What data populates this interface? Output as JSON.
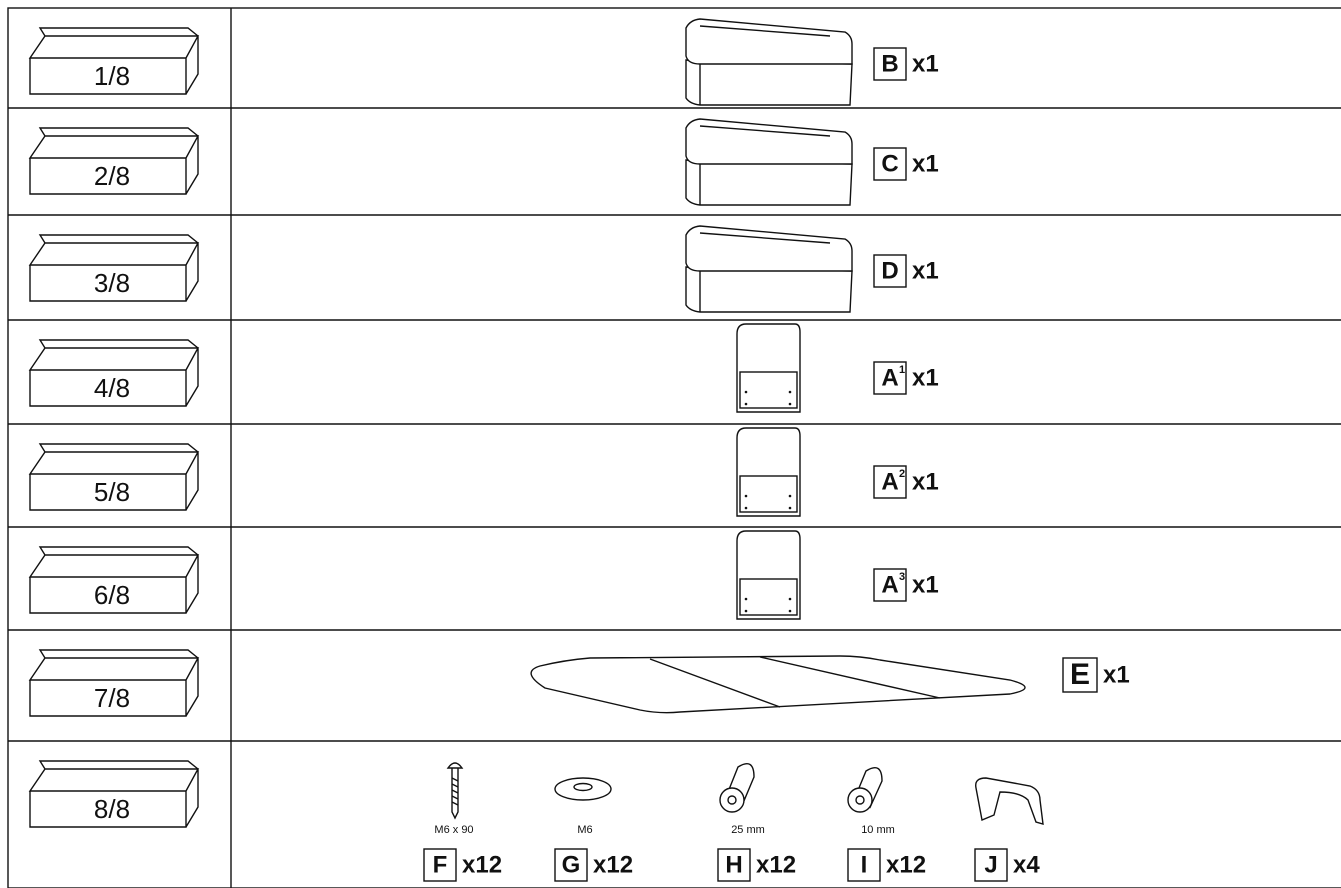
{
  "parts_list": {
    "rows": [
      {
        "box": "1/8",
        "parts": [
          {
            "letter": "B",
            "quantity": "x1"
          }
        ]
      },
      {
        "box": "2/8",
        "parts": [
          {
            "letter": "C",
            "quantity": "x1"
          }
        ]
      },
      {
        "box": "3/8",
        "parts": [
          {
            "letter": "D",
            "quantity": "x1"
          }
        ]
      },
      {
        "box": "4/8",
        "parts": [
          {
            "letter": "A",
            "superscript": "1",
            "quantity": "x1"
          }
        ]
      },
      {
        "box": "5/8",
        "parts": [
          {
            "letter": "A",
            "superscript": "2",
            "quantity": "x1"
          }
        ]
      },
      {
        "box": "6/8",
        "parts": [
          {
            "letter": "A",
            "superscript": "3",
            "quantity": "x1"
          }
        ]
      },
      {
        "box": "7/8",
        "parts": [
          {
            "letter": "E",
            "quantity": "x1"
          }
        ]
      },
      {
        "box": "8/8",
        "parts": [
          {
            "letter": "F",
            "quantity": "x12",
            "size": "M6 x 90"
          },
          {
            "letter": "G",
            "quantity": "x12",
            "size": "M6"
          },
          {
            "letter": "H",
            "quantity": "x12",
            "size": "25 mm"
          },
          {
            "letter": "I",
            "quantity": "x12",
            "size": "10 mm"
          },
          {
            "letter": "J",
            "quantity": "x4"
          }
        ]
      }
    ]
  }
}
